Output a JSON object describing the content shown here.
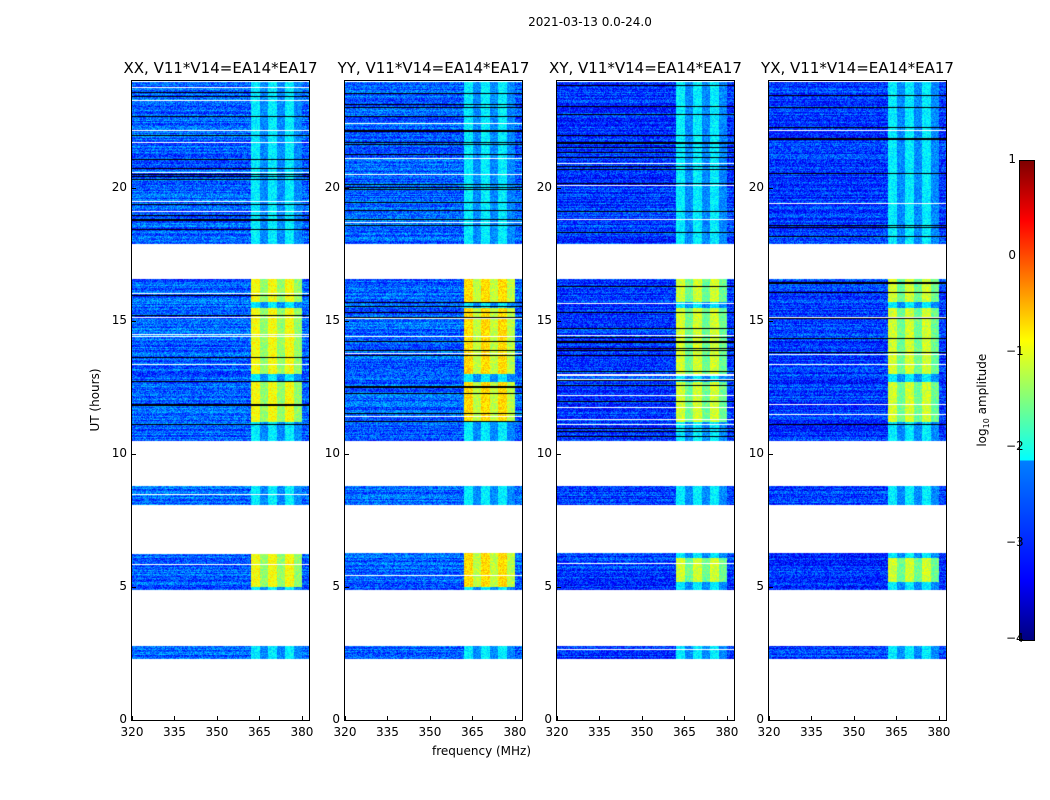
{
  "chart_data": {
    "type": "heatmap",
    "title": "2021-03-13 0.0-24.0",
    "xlabel": "frequency (MHz)",
    "ylabel": "UT (hours)",
    "xlim": [
      320,
      382.5
    ],
    "ylim": [
      0,
      24
    ],
    "xticks": [
      "320",
      "335",
      "350",
      "365",
      "380"
    ],
    "yticks": [
      "0",
      "5",
      "10",
      "15",
      "20"
    ],
    "colorbar": {
      "label": "log10 amplitude",
      "label_main": "log",
      "label_sub": "10",
      "label_rest": " amplitude",
      "range": [
        -4,
        1
      ],
      "ticks": [
        "1",
        "0",
        "−1",
        "−2",
        "−3",
        "−4"
      ],
      "colormap": "jet"
    },
    "data_segments_hours": [
      [
        2.3,
        2.8
      ],
      [
        4.9,
        6.3
      ],
      [
        8.1,
        8.8
      ],
      [
        10.5,
        16.6
      ],
      [
        17.9,
        24
      ]
    ],
    "rfi_band_mhz": [
      362,
      380
    ],
    "panels": [
      {
        "title": "XX, V11*V14=EA14*EA17",
        "background_level": -2.9,
        "band_level_strong": -0.9,
        "strong_hours": [
          [
            5.0,
            6.3
          ],
          [
            11.2,
            12.7
          ],
          [
            13.0,
            15.5
          ],
          [
            15.7,
            16.6
          ]
        ]
      },
      {
        "title": "YY, V11*V14=EA14*EA17",
        "background_level": -2.9,
        "band_level_strong": -0.7,
        "strong_hours": [
          [
            5.0,
            6.3
          ],
          [
            11.2,
            12.7
          ],
          [
            13.0,
            15.5
          ],
          [
            15.7,
            16.6
          ]
        ]
      },
      {
        "title": "XY, V11*V14=EA14*EA17",
        "background_level": -3.1,
        "band_level_strong": -1.1,
        "strong_hours": [
          [
            5.2,
            6.1
          ],
          [
            11.2,
            12.7
          ],
          [
            13.0,
            15.5
          ],
          [
            15.7,
            16.6
          ]
        ]
      },
      {
        "title": "YX, V11*V14=EA14*EA17",
        "background_level": -3.1,
        "band_level_strong": -1.1,
        "strong_hours": [
          [
            5.2,
            6.1
          ],
          [
            11.2,
            12.7
          ],
          [
            13.0,
            15.5
          ],
          [
            15.7,
            16.6
          ]
        ]
      }
    ]
  }
}
